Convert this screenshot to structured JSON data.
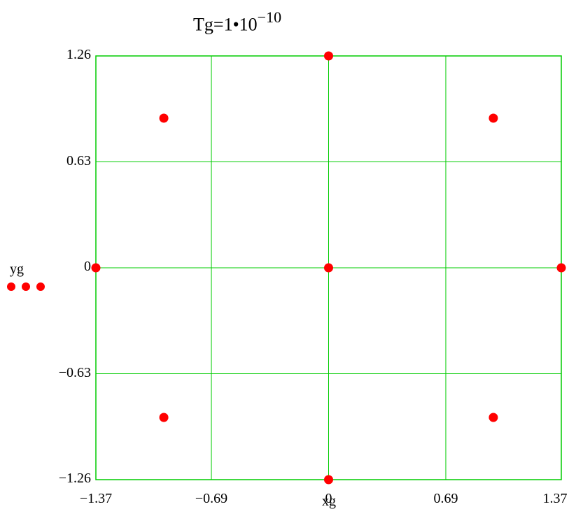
{
  "title": {
    "base": "Tg",
    "eq": "=",
    "mantissa": "1",
    "dot": "•",
    "power_base": "10",
    "exponent": "−10"
  },
  "chart_data": {
    "type": "scatter",
    "title": "Tg=1•10^-10",
    "xlabel": "xg",
    "ylabel": "yg",
    "xlim": [
      -1.37,
      1.37
    ],
    "ylim": [
      -1.26,
      1.26
    ],
    "x_ticks": [
      -1.37,
      -0.69,
      0,
      0.69,
      1.37
    ],
    "y_ticks": [
      -1.26,
      -0.63,
      0,
      0.63,
      1.26
    ],
    "x_tick_labels": [
      "−1.37",
      "−0.69",
      "0",
      "0.69",
      "1.37"
    ],
    "y_tick_labels": [
      "−1.26",
      "−0.63",
      "0",
      "0.63",
      "1.26"
    ],
    "grid": true,
    "series": [
      {
        "color": "#ff0000",
        "marker": "circle",
        "points": [
          {
            "x": 0,
            "y": 1.26
          },
          {
            "x": -0.97,
            "y": 0.89
          },
          {
            "x": 0.97,
            "y": 0.89
          },
          {
            "x": -1.37,
            "y": 0
          },
          {
            "x": 0,
            "y": 0
          },
          {
            "x": 1.37,
            "y": 0
          },
          {
            "x": -0.97,
            "y": -0.89
          },
          {
            "x": 0.97,
            "y": -0.89
          },
          {
            "x": 0,
            "y": -1.26
          }
        ]
      }
    ],
    "colors": {
      "grid": "#00cc00",
      "frame": "#00cc00",
      "points": "#ff0000"
    }
  }
}
